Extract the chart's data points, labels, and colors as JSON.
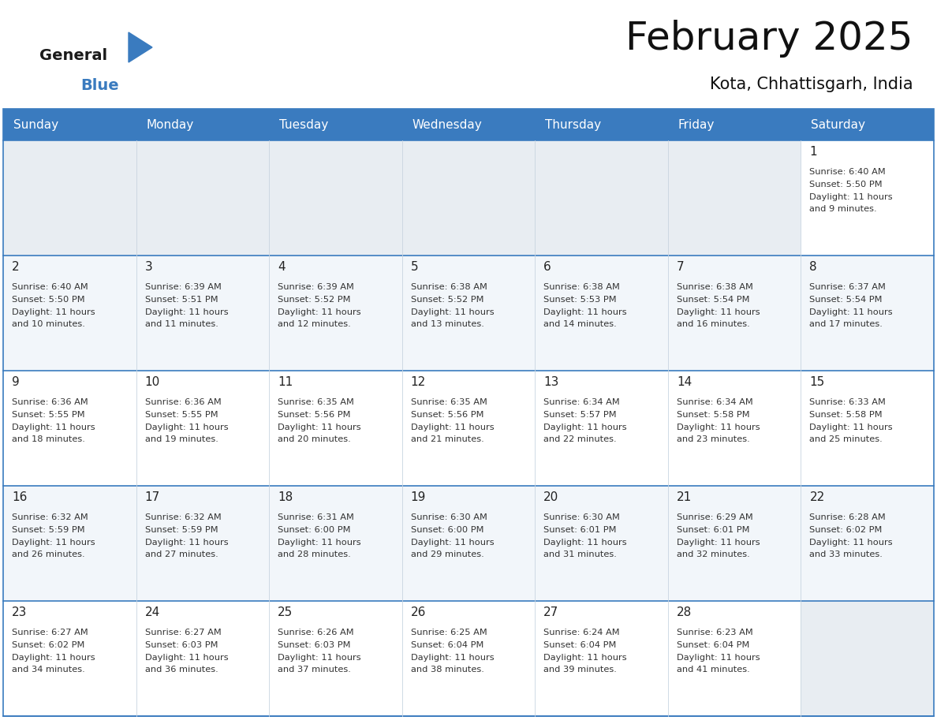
{
  "title": "February 2025",
  "subtitle": "Kota, Chhattisgarh, India",
  "days_of_week": [
    "Sunday",
    "Monday",
    "Tuesday",
    "Wednesday",
    "Thursday",
    "Friday",
    "Saturday"
  ],
  "header_bg": "#3a7bbf",
  "header_text": "#ffffff",
  "cell_bg_light": "#f2f6fa",
  "cell_bg_white": "#ffffff",
  "cell_bg_empty": "#e8edf2",
  "border_color": "#3a7bbf",
  "row_line_color": "#3a7bbf",
  "col_line_color": "#c8d4e0",
  "text_color": "#222222",
  "info_text_color": "#333333",
  "calendar": [
    [
      null,
      null,
      null,
      null,
      null,
      null,
      {
        "day": 1,
        "sunrise": "6:40 AM",
        "sunset": "5:50 PM",
        "daylight_hrs": 11,
        "daylight_min": 9
      }
    ],
    [
      {
        "day": 2,
        "sunrise": "6:40 AM",
        "sunset": "5:50 PM",
        "daylight_hrs": 11,
        "daylight_min": 10
      },
      {
        "day": 3,
        "sunrise": "6:39 AM",
        "sunset": "5:51 PM",
        "daylight_hrs": 11,
        "daylight_min": 11
      },
      {
        "day": 4,
        "sunrise": "6:39 AM",
        "sunset": "5:52 PM",
        "daylight_hrs": 11,
        "daylight_min": 12
      },
      {
        "day": 5,
        "sunrise": "6:38 AM",
        "sunset": "5:52 PM",
        "daylight_hrs": 11,
        "daylight_min": 13
      },
      {
        "day": 6,
        "sunrise": "6:38 AM",
        "sunset": "5:53 PM",
        "daylight_hrs": 11,
        "daylight_min": 14
      },
      {
        "day": 7,
        "sunrise": "6:38 AM",
        "sunset": "5:54 PM",
        "daylight_hrs": 11,
        "daylight_min": 16
      },
      {
        "day": 8,
        "sunrise": "6:37 AM",
        "sunset": "5:54 PM",
        "daylight_hrs": 11,
        "daylight_min": 17
      }
    ],
    [
      {
        "day": 9,
        "sunrise": "6:36 AM",
        "sunset": "5:55 PM",
        "daylight_hrs": 11,
        "daylight_min": 18
      },
      {
        "day": 10,
        "sunrise": "6:36 AM",
        "sunset": "5:55 PM",
        "daylight_hrs": 11,
        "daylight_min": 19
      },
      {
        "day": 11,
        "sunrise": "6:35 AM",
        "sunset": "5:56 PM",
        "daylight_hrs": 11,
        "daylight_min": 20
      },
      {
        "day": 12,
        "sunrise": "6:35 AM",
        "sunset": "5:56 PM",
        "daylight_hrs": 11,
        "daylight_min": 21
      },
      {
        "day": 13,
        "sunrise": "6:34 AM",
        "sunset": "5:57 PM",
        "daylight_hrs": 11,
        "daylight_min": 22
      },
      {
        "day": 14,
        "sunrise": "6:34 AM",
        "sunset": "5:58 PM",
        "daylight_hrs": 11,
        "daylight_min": 23
      },
      {
        "day": 15,
        "sunrise": "6:33 AM",
        "sunset": "5:58 PM",
        "daylight_hrs": 11,
        "daylight_min": 25
      }
    ],
    [
      {
        "day": 16,
        "sunrise": "6:32 AM",
        "sunset": "5:59 PM",
        "daylight_hrs": 11,
        "daylight_min": 26
      },
      {
        "day": 17,
        "sunrise": "6:32 AM",
        "sunset": "5:59 PM",
        "daylight_hrs": 11,
        "daylight_min": 27
      },
      {
        "day": 18,
        "sunrise": "6:31 AM",
        "sunset": "6:00 PM",
        "daylight_hrs": 11,
        "daylight_min": 28
      },
      {
        "day": 19,
        "sunrise": "6:30 AM",
        "sunset": "6:00 PM",
        "daylight_hrs": 11,
        "daylight_min": 29
      },
      {
        "day": 20,
        "sunrise": "6:30 AM",
        "sunset": "6:01 PM",
        "daylight_hrs": 11,
        "daylight_min": 31
      },
      {
        "day": 21,
        "sunrise": "6:29 AM",
        "sunset": "6:01 PM",
        "daylight_hrs": 11,
        "daylight_min": 32
      },
      {
        "day": 22,
        "sunrise": "6:28 AM",
        "sunset": "6:02 PM",
        "daylight_hrs": 11,
        "daylight_min": 33
      }
    ],
    [
      {
        "day": 23,
        "sunrise": "6:27 AM",
        "sunset": "6:02 PM",
        "daylight_hrs": 11,
        "daylight_min": 34
      },
      {
        "day": 24,
        "sunrise": "6:27 AM",
        "sunset": "6:03 PM",
        "daylight_hrs": 11,
        "daylight_min": 36
      },
      {
        "day": 25,
        "sunrise": "6:26 AM",
        "sunset": "6:03 PM",
        "daylight_hrs": 11,
        "daylight_min": 37
      },
      {
        "day": 26,
        "sunrise": "6:25 AM",
        "sunset": "6:04 PM",
        "daylight_hrs": 11,
        "daylight_min": 38
      },
      {
        "day": 27,
        "sunrise": "6:24 AM",
        "sunset": "6:04 PM",
        "daylight_hrs": 11,
        "daylight_min": 39
      },
      {
        "day": 28,
        "sunrise": "6:23 AM",
        "sunset": "6:04 PM",
        "daylight_hrs": 11,
        "daylight_min": 41
      },
      null
    ]
  ],
  "logo_general_color": "#1a1a1a",
  "logo_blue_color": "#3a7bbf",
  "logo_triangle_color": "#3a7bbf",
  "title_fontsize": 36,
  "subtitle_fontsize": 15,
  "header_fontsize": 11,
  "day_num_fontsize": 11,
  "info_fontsize": 8.2
}
